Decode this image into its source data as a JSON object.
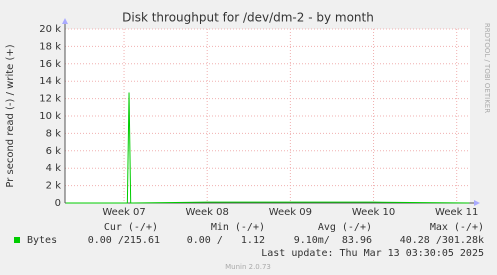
{
  "chart_data": {
    "type": "line",
    "title": "Disk throughput for /dev/dm-2 - by month",
    "y_label": "Pr second read (-) / write (+)",
    "side_label": "RRDTOOL / TOBI OETIKER",
    "xlim": [
      6.29,
      11.16
    ],
    "xticks": [
      {
        "value": 7,
        "label": "Week 07"
      },
      {
        "value": 8,
        "label": "Week 08"
      },
      {
        "value": 9,
        "label": "Week 09"
      },
      {
        "value": 10,
        "label": "Week 10"
      },
      {
        "value": 11,
        "label": "Week 11"
      }
    ],
    "ylim": [
      0,
      20000
    ],
    "yticks": [
      {
        "value": 0,
        "label": "0"
      },
      {
        "value": 2000,
        "label": "2 k"
      },
      {
        "value": 4000,
        "label": "4 k"
      },
      {
        "value": 6000,
        "label": "6 k"
      },
      {
        "value": 8000,
        "label": "8 k"
      },
      {
        "value": 10000,
        "label": "10 k"
      },
      {
        "value": 12000,
        "label": "12 k"
      },
      {
        "value": 14000,
        "label": "14 k"
      },
      {
        "value": 16000,
        "label": "16 k"
      },
      {
        "value": 18000,
        "label": "18 k"
      },
      {
        "value": 20000,
        "label": "20 k"
      }
    ],
    "grid": true,
    "series": [
      {
        "name": "Bytes",
        "color": "#00cc00",
        "x": [
          6.3,
          7.04,
          7.06,
          7.08,
          7.1,
          8.0,
          9.0,
          10.0,
          11.15
        ],
        "values": [
          0,
          0,
          12700,
          0,
          0,
          100,
          100,
          100,
          0
        ]
      }
    ]
  },
  "legend_table": {
    "headers": [
      "Cur (-/+)",
      "Min (-/+)",
      "Avg (-/+)",
      "Max (-/+)"
    ],
    "row": [
      "0.00 /215.61",
      "0.00 /   1.12",
      "9.10m/  83.96",
      "40.28 /301.28k"
    ]
  },
  "footer": {
    "last_update": "Last update: Thu Mar 13 03:30:05 2025",
    "version": "Munin 2.0.73"
  }
}
